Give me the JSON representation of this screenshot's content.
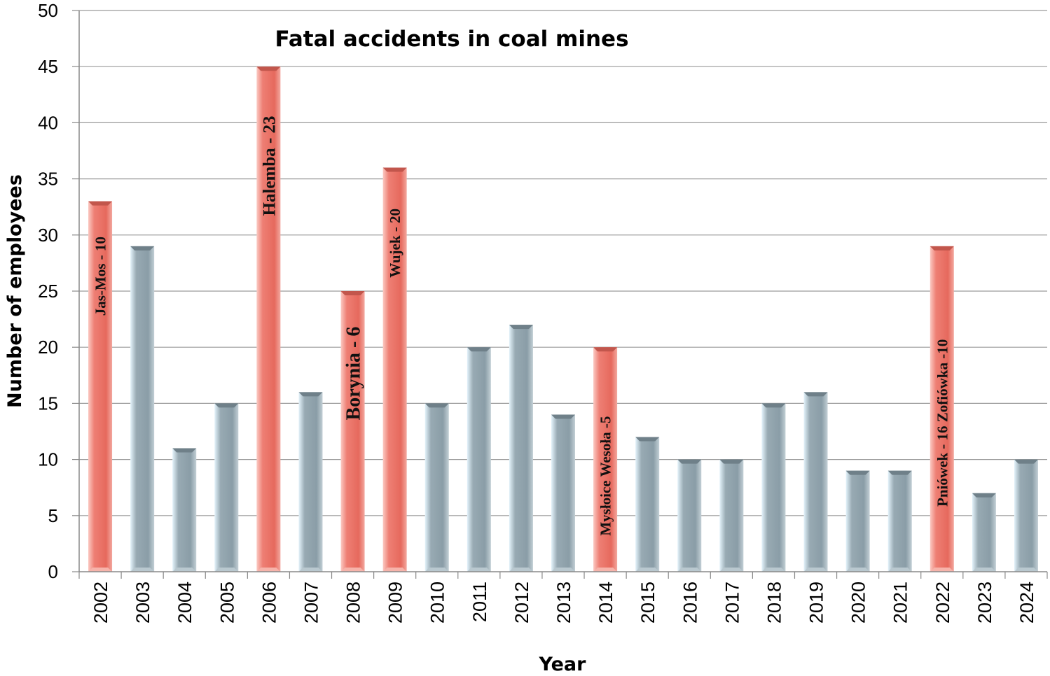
{
  "chart_data": {
    "type": "bar",
    "title": "Fatal accidents in coal mines",
    "xlabel": "Year",
    "ylabel": "Number of employees",
    "ylim": [
      0,
      50
    ],
    "yticks": [
      0,
      5,
      10,
      15,
      20,
      25,
      30,
      35,
      40,
      45,
      50
    ],
    "grid": true,
    "categories": [
      "2002",
      "2003",
      "2004",
      "2005",
      "2006",
      "2007",
      "2008",
      "2009",
      "2010",
      "2011",
      "2012",
      "2013",
      "2014",
      "2015",
      "2016",
      "2017",
      "2018",
      "2019",
      "2020",
      "2021",
      "2022",
      "2023",
      "2024"
    ],
    "values": [
      33,
      29,
      11,
      15,
      45,
      16,
      25,
      36,
      15,
      20,
      22,
      14,
      20,
      12,
      10,
      10,
      15,
      16,
      9,
      9,
      29,
      7,
      10
    ],
    "annotations": [
      {
        "category": "2002",
        "text": "Jas-Mos - 10"
      },
      {
        "category": "2006",
        "text": "Halemba - 23"
      },
      {
        "category": "2008",
        "text": "Borynia - 6"
      },
      {
        "category": "2009",
        "text": "Wujek - 20"
      },
      {
        "category": "2014",
        "text": "Mysłoice Wesoła -5"
      },
      {
        "category": "2022",
        "text": "Pniówek - 16 Zofiówka -10"
      }
    ],
    "colors": {
      "highlight": "#e8736a",
      "normal": "#8fa4ae",
      "grid": "#9a9a9a"
    }
  }
}
